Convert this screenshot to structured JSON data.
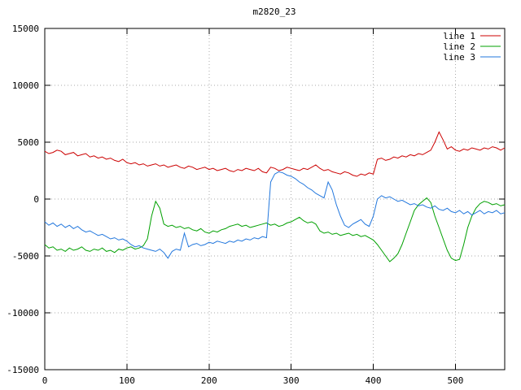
{
  "window": {
    "title": "m2820_23"
  },
  "chart_data": {
    "type": "line",
    "title": "m2820_23",
    "xlabel": "",
    "ylabel": "",
    "xlim": [
      0,
      560
    ],
    "ylim": [
      -15000,
      15000
    ],
    "xticks": [
      0,
      100,
      200,
      300,
      400,
      500
    ],
    "yticks": [
      -15000,
      -10000,
      -5000,
      0,
      5000,
      10000,
      15000
    ],
    "grid": true,
    "legend_position": "top-right",
    "background": "#ffffff",
    "grid_color": "#aaaaaa",
    "axis_color": "#000000",
    "x": [
      0,
      5,
      10,
      15,
      20,
      25,
      30,
      35,
      40,
      45,
      50,
      55,
      60,
      65,
      70,
      75,
      80,
      85,
      90,
      95,
      100,
      105,
      110,
      115,
      120,
      125,
      130,
      135,
      140,
      145,
      150,
      155,
      160,
      165,
      170,
      175,
      180,
      185,
      190,
      195,
      200,
      205,
      210,
      215,
      220,
      225,
      230,
      235,
      240,
      245,
      250,
      255,
      260,
      265,
      270,
      275,
      280,
      285,
      290,
      295,
      300,
      305,
      310,
      315,
      320,
      325,
      330,
      335,
      340,
      345,
      350,
      355,
      360,
      365,
      370,
      375,
      380,
      385,
      390,
      395,
      400,
      405,
      410,
      415,
      420,
      425,
      430,
      435,
      440,
      445,
      450,
      455,
      460,
      465,
      470,
      475,
      480,
      485,
      490,
      495,
      500,
      505,
      510,
      515,
      520,
      525,
      530,
      535,
      540,
      545,
      550,
      555,
      560
    ],
    "series": [
      {
        "name": "line 1",
        "color": "#cc0000",
        "values": [
          4200,
          4000,
          4100,
          4300,
          4200,
          3900,
          4000,
          4100,
          3800,
          3900,
          4000,
          3700,
          3800,
          3600,
          3700,
          3500,
          3600,
          3400,
          3300,
          3500,
          3200,
          3100,
          3200,
          3000,
          3100,
          2900,
          3000,
          3100,
          2900,
          3000,
          2800,
          2900,
          3000,
          2800,
          2700,
          2900,
          2800,
          2600,
          2700,
          2800,
          2600,
          2700,
          2500,
          2600,
          2700,
          2500,
          2400,
          2600,
          2500,
          2700,
          2600,
          2500,
          2700,
          2400,
          2300,
          2800,
          2700,
          2500,
          2600,
          2800,
          2700,
          2600,
          2500,
          2700,
          2600,
          2800,
          3000,
          2700,
          2500,
          2600,
          2400,
          2300,
          2200,
          2400,
          2300,
          2100,
          2000,
          2200,
          2100,
          2300,
          2200,
          3500,
          3600,
          3400,
          3500,
          3700,
          3600,
          3800,
          3700,
          3900,
          3800,
          4000,
          3900,
          4100,
          4300,
          5000,
          5900,
          5200,
          4400,
          4600,
          4300,
          4200,
          4400,
          4300,
          4500,
          4400,
          4300,
          4500,
          4400,
          4600,
          4500,
          4300,
          4500
        ]
      },
      {
        "name": "line 2",
        "color": "#00a000",
        "values": [
          -4000,
          -4300,
          -4200,
          -4500,
          -4400,
          -4600,
          -4300,
          -4500,
          -4400,
          -4200,
          -4500,
          -4600,
          -4400,
          -4500,
          -4300,
          -4600,
          -4500,
          -4700,
          -4400,
          -4500,
          -4300,
          -4200,
          -4400,
          -4300,
          -4100,
          -3500,
          -1500,
          -200,
          -800,
          -2200,
          -2400,
          -2300,
          -2500,
          -2400,
          -2600,
          -2500,
          -2700,
          -2800,
          -2600,
          -2900,
          -3000,
          -2800,
          -2900,
          -2700,
          -2600,
          -2400,
          -2300,
          -2200,
          -2400,
          -2300,
          -2500,
          -2400,
          -2300,
          -2200,
          -2100,
          -2300,
          -2200,
          -2400,
          -2300,
          -2100,
          -2000,
          -1800,
          -1600,
          -1900,
          -2100,
          -2000,
          -2200,
          -2800,
          -3000,
          -2900,
          -3100,
          -3000,
          -3200,
          -3100,
          -3000,
          -3200,
          -3100,
          -3300,
          -3200,
          -3400,
          -3600,
          -4000,
          -4500,
          -5000,
          -5500,
          -5200,
          -4800,
          -4000,
          -3000,
          -2000,
          -1000,
          -500,
          -200,
          100,
          -300,
          -1500,
          -2500,
          -3500,
          -4500,
          -5200,
          -5400,
          -5300,
          -4000,
          -2500,
          -1500,
          -800,
          -400,
          -200,
          -300,
          -500,
          -400,
          -600,
          -500
        ]
      },
      {
        "name": "line 3",
        "color": "#2277dd",
        "values": [
          -2000,
          -2300,
          -2100,
          -2400,
          -2200,
          -2500,
          -2300,
          -2600,
          -2400,
          -2700,
          -2900,
          -2800,
          -3000,
          -3200,
          -3100,
          -3300,
          -3500,
          -3400,
          -3600,
          -3500,
          -3700,
          -4000,
          -4200,
          -4100,
          -4300,
          -4400,
          -4500,
          -4600,
          -4400,
          -4700,
          -5200,
          -4600,
          -4400,
          -4500,
          -3000,
          -4200,
          -4000,
          -3900,
          -4100,
          -4000,
          -3800,
          -3900,
          -3700,
          -3800,
          -3900,
          -3700,
          -3800,
          -3600,
          -3700,
          -3500,
          -3600,
          -3400,
          -3500,
          -3300,
          -3400,
          1500,
          2200,
          2400,
          2300,
          2100,
          2000,
          1800,
          1500,
          1300,
          1000,
          800,
          500,
          300,
          100,
          1500,
          800,
          -500,
          -1500,
          -2300,
          -2500,
          -2200,
          -2000,
          -1800,
          -2200,
          -2400,
          -1500,
          0,
          300,
          100,
          200,
          0,
          -200,
          -100,
          -300,
          -500,
          -400,
          -600,
          -500,
          -700,
          -800,
          -600,
          -900,
          -1000,
          -800,
          -1100,
          -1200,
          -1000,
          -1300,
          -1100,
          -1400,
          -1200,
          -1000,
          -1300,
          -1100,
          -1200,
          -1000,
          -1300,
          -1200
        ]
      }
    ]
  }
}
